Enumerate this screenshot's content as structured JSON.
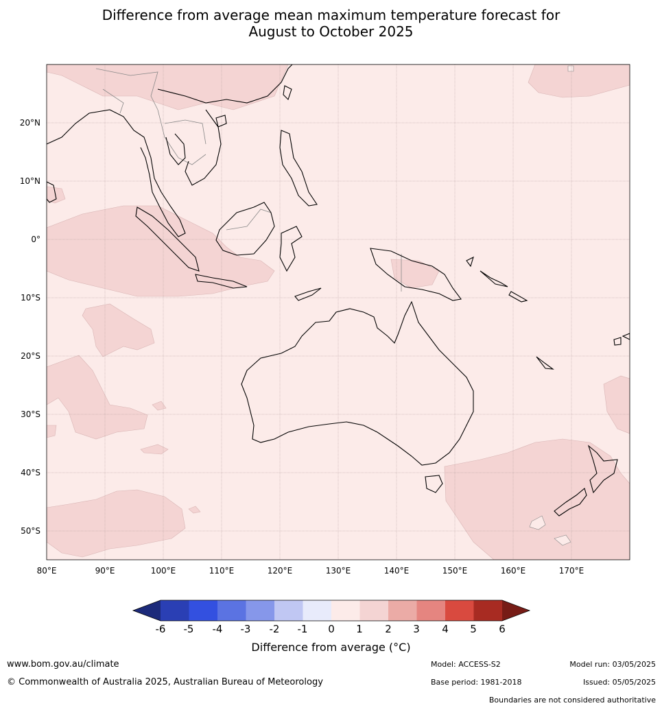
{
  "title": {
    "line1": "Difference from average mean maximum temperature forecast for",
    "line2": "August to October 2025"
  },
  "map": {
    "lat_labels": [
      "20°N",
      "10°N",
      "0°",
      "10°S",
      "20°S",
      "30°S",
      "40°S",
      "50°S"
    ],
    "lon_labels": [
      "80°E",
      "90°E",
      "100°E",
      "110°E",
      "120°E",
      "130°E",
      "140°E",
      "150°E",
      "160°E",
      "170°E"
    ],
    "background_fill": "#fcebe9",
    "anomaly_fill": "#f4d4d3",
    "land_outline": "#000000",
    "border_outline": "#888888",
    "grid_color": "#b09a9a"
  },
  "colorbar": {
    "ticks": [
      "-6",
      "-5",
      "-4",
      "-3",
      "-2",
      "-1",
      "0",
      "1",
      "2",
      "3",
      "4",
      "5",
      "6"
    ],
    "colors": [
      "#1c2a7a",
      "#2a3fb4",
      "#3350e0",
      "#5b73e2",
      "#8697ea",
      "#c0c7f3",
      "#e8ebfb",
      "#fcebe9",
      "#f4d4d3",
      "#ebaba6",
      "#e58580",
      "#d94a3f",
      "#a82b22",
      "#771c16"
    ],
    "label": "Difference from average (°C)"
  },
  "footer": {
    "website": "www.bom.gov.au/climate",
    "copyright": "© Commonwealth of Australia 2025, Australian Bureau of Meteorology",
    "model": "Model: ACCESS-S2",
    "base_period": "Base period: 1981-2018",
    "model_run": "Model run: 03/05/2025",
    "issued": "Issued: 05/05/2025",
    "disclaimer": "Boundaries are not considered authoritative"
  }
}
